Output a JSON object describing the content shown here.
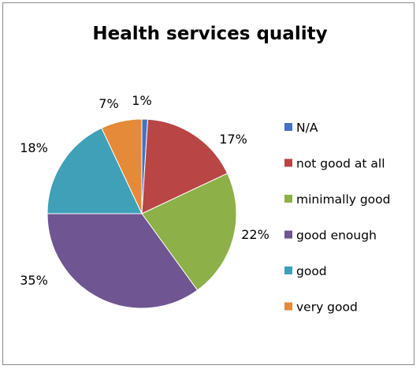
{
  "chart_data": {
    "type": "pie",
    "title": "Health services quality",
    "categories": [
      "N/A",
      "not good at all",
      "minimally good",
      "good enough",
      "good",
      "very good"
    ],
    "values": [
      1,
      17,
      22,
      35,
      18,
      7
    ],
    "data_labels": [
      "1%",
      "17%",
      "22%",
      "35%",
      "18%",
      "7%"
    ],
    "colors": [
      "#4472c4",
      "#b94545",
      "#8db048",
      "#6f5591",
      "#3fa0b7",
      "#e48a38"
    ],
    "legend_placement": "right"
  }
}
